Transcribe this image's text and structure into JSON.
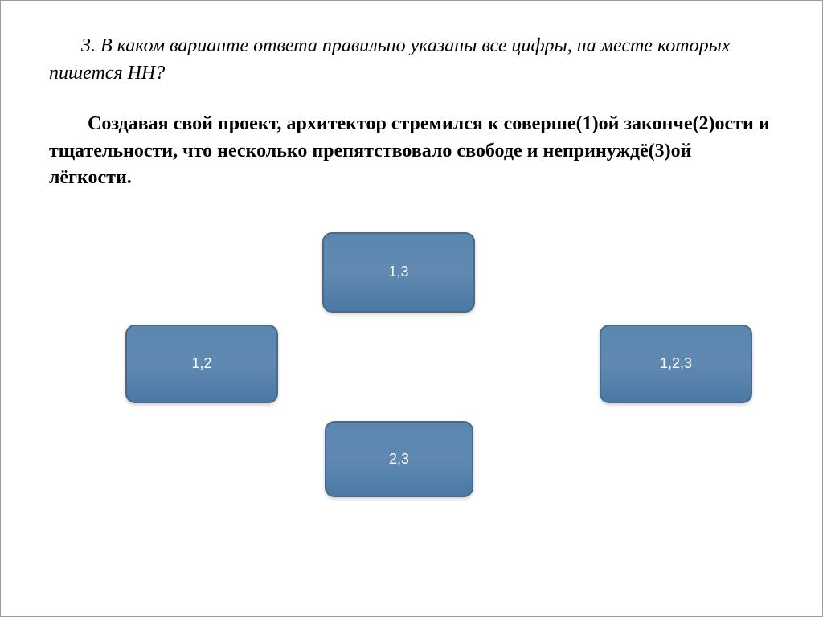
{
  "question": {
    "title": "3. В каком варианте ответа правильно указаны все цифры, на месте которых пишется НН?",
    "body": "Создавая свой проект, архитектор стремился к соверше(1)ой законче(2)ости и тщательности, что несколько препятствовало свободе и непринуждё(3)ой лёгкости."
  },
  "options": {
    "top": {
      "label": "1,3"
    },
    "left": {
      "label": "1,2"
    },
    "right": {
      "label": "1,2,3"
    },
    "bottom": {
      "label": "2,3"
    }
  },
  "styling": {
    "button_bg_color": "#5b88b0",
    "button_border_color": "#4a6a8a",
    "button_text_color": "#ffffff",
    "button_border_radius": 12,
    "body_bg_color": "#ffffff",
    "title_fontsize": 24,
    "body_fontsize": 24,
    "option_fontsize": 18
  }
}
